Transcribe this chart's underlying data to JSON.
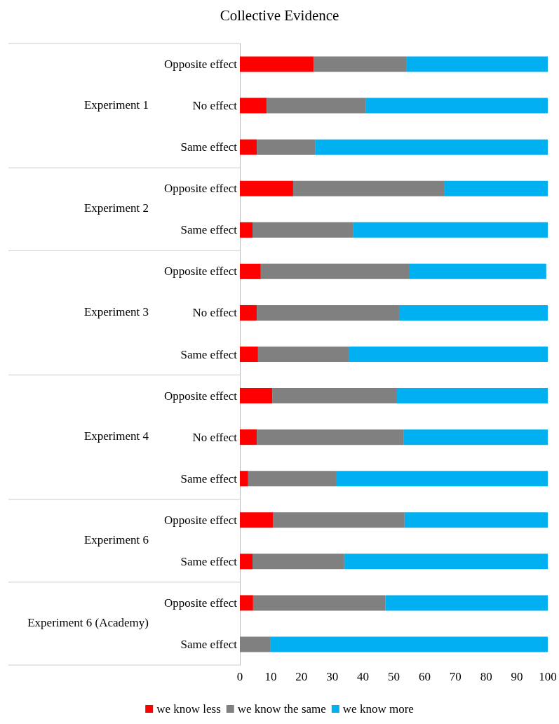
{
  "chart_data": {
    "type": "bar",
    "title": "Collective Evidence",
    "orientation": "horizontal",
    "stacked": true,
    "categories": [
      "Opposite effect",
      "No effect",
      "Same effect",
      "Opposite effect",
      "Same effect",
      "Opposite effect",
      "No effect",
      "Same effect",
      "Opposite effect",
      "No effect",
      "Same effect",
      "Opposite effect",
      "Same effect",
      "Opposite effect",
      "Same effect"
    ],
    "annotations": [
      "Experiment 1",
      "Experiment 2",
      "Experiment 3",
      "Experiment 4",
      "Experiment 6",
      "Experiment 6 (Academy)"
    ],
    "series": [
      {
        "name": "we know less",
        "color": "#ff0000",
        "values": [
          24,
          8.7,
          5.5,
          17.3,
          4.1,
          6.8,
          5.5,
          5.9,
          10.5,
          5.5,
          2.7,
          10.7,
          4.1,
          4.3,
          0
        ]
      },
      {
        "name": "we know the same",
        "color": "#808080",
        "values": [
          30,
          32.1,
          18.9,
          49,
          32.6,
          48.1,
          46.2,
          29.4,
          40.3,
          47.6,
          28.5,
          42.8,
          29.8,
          42.9,
          10
        ]
      },
      {
        "name": "we know more",
        "color": "#00b0f0",
        "values": [
          46,
          59.2,
          75.6,
          33.7,
          63.3,
          44.6,
          48.3,
          64.7,
          49.2,
          46.9,
          68.8,
          46.5,
          66.1,
          52.8,
          90
        ]
      }
    ],
    "xlim": [
      0,
      100
    ],
    "xticks": [
      0,
      10,
      20,
      30,
      40,
      50,
      60,
      70,
      80,
      90,
      100
    ],
    "grid": false,
    "legend": "bottom"
  }
}
